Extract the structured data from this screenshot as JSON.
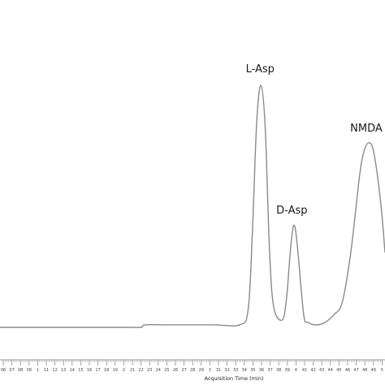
{
  "chart_data": {
    "type": "line",
    "title": "",
    "xlabel": "Acquisition Time (min)",
    "ylabel": "",
    "xlim": [
      0.5,
      5.0
    ],
    "ylim": [
      0,
      1.0
    ],
    "grid": false,
    "line_color": "#8a8a8a",
    "x_tick_labels": [
      "06",
      "07",
      "08",
      "09",
      "1",
      "11",
      "12",
      "13",
      "14",
      "15",
      "16",
      "17",
      "18",
      "19",
      "2",
      "21",
      "22",
      "23",
      "24",
      "25",
      "26",
      "27",
      "28",
      "29",
      "3",
      "31",
      "32",
      "33",
      "34",
      "35",
      "36",
      "37",
      "38",
      "39",
      "4",
      "41",
      "42",
      "43",
      "44",
      "45",
      "46",
      "47",
      "48",
      "49",
      "5"
    ],
    "baseline": 0.0,
    "peaks": [
      {
        "label": "L-Asp",
        "x": 3.55,
        "height": 0.97
      },
      {
        "label": "D-Asp",
        "x": 3.94,
        "height": 0.41
      },
      {
        "label": "NMDA",
        "x": 4.81,
        "height": 0.74
      }
    ],
    "series": [
      {
        "x": [
          0.5,
          1.0,
          1.5,
          2.0,
          2.15,
          2.2,
          2.5,
          3.0,
          3.3,
          3.4,
          3.45,
          3.5,
          3.55,
          3.6,
          3.65,
          3.7,
          3.8,
          3.85,
          3.9,
          3.94,
          3.98,
          4.05,
          4.1,
          4.2,
          4.3,
          4.4,
          4.5,
          4.6,
          4.7,
          4.75,
          4.81,
          4.87,
          4.95,
          5.0
        ],
        "y": [
          0.0,
          0.0,
          0.0,
          0.0,
          0.0,
          0.01,
          0.01,
          0.01,
          0.01,
          0.07,
          0.38,
          0.82,
          0.97,
          0.8,
          0.31,
          0.08,
          0.03,
          0.12,
          0.33,
          0.41,
          0.31,
          0.05,
          0.02,
          0.01,
          0.02,
          0.05,
          0.1,
          0.3,
          0.6,
          0.7,
          0.74,
          0.7,
          0.5,
          0.3
        ]
      }
    ]
  }
}
